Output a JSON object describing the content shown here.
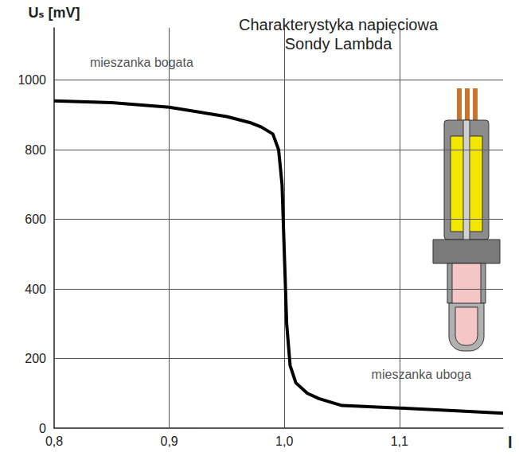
{
  "chart_data": {
    "type": "line",
    "title": "Charakterystyka napięciowa Sondy Lambda",
    "xlabel": "l",
    "ylabel": "Uₛ [mV]",
    "x": [
      0.8,
      0.85,
      0.9,
      0.95,
      0.97,
      0.98,
      0.99,
      0.995,
      0.998,
      1.0,
      1.002,
      1.005,
      1.01,
      1.02,
      1.03,
      1.05,
      1.1,
      1.15,
      1.19
    ],
    "values": [
      940,
      935,
      922,
      895,
      878,
      865,
      845,
      800,
      700,
      500,
      300,
      180,
      130,
      100,
      85,
      65,
      58,
      50,
      43
    ],
    "color": "#000000",
    "xlim": [
      0.8,
      1.19
    ],
    "xticks": [
      {
        "value": 0.8,
        "label": "0,8"
      },
      {
        "value": 0.9,
        "label": "0,9"
      },
      {
        "value": 1.0,
        "label": "1,0"
      },
      {
        "value": 1.1,
        "label": "1,1"
      }
    ],
    "ylim": [
      0,
      1150
    ],
    "yticks": [
      0,
      200,
      400,
      600,
      800,
      1000
    ],
    "grid": true,
    "annotations": [
      {
        "text": "mieszanka bogata",
        "x": 0.876,
        "y": 1050
      },
      {
        "text": "mieszanka uboga",
        "x": 1.119,
        "y": 155
      }
    ]
  }
}
